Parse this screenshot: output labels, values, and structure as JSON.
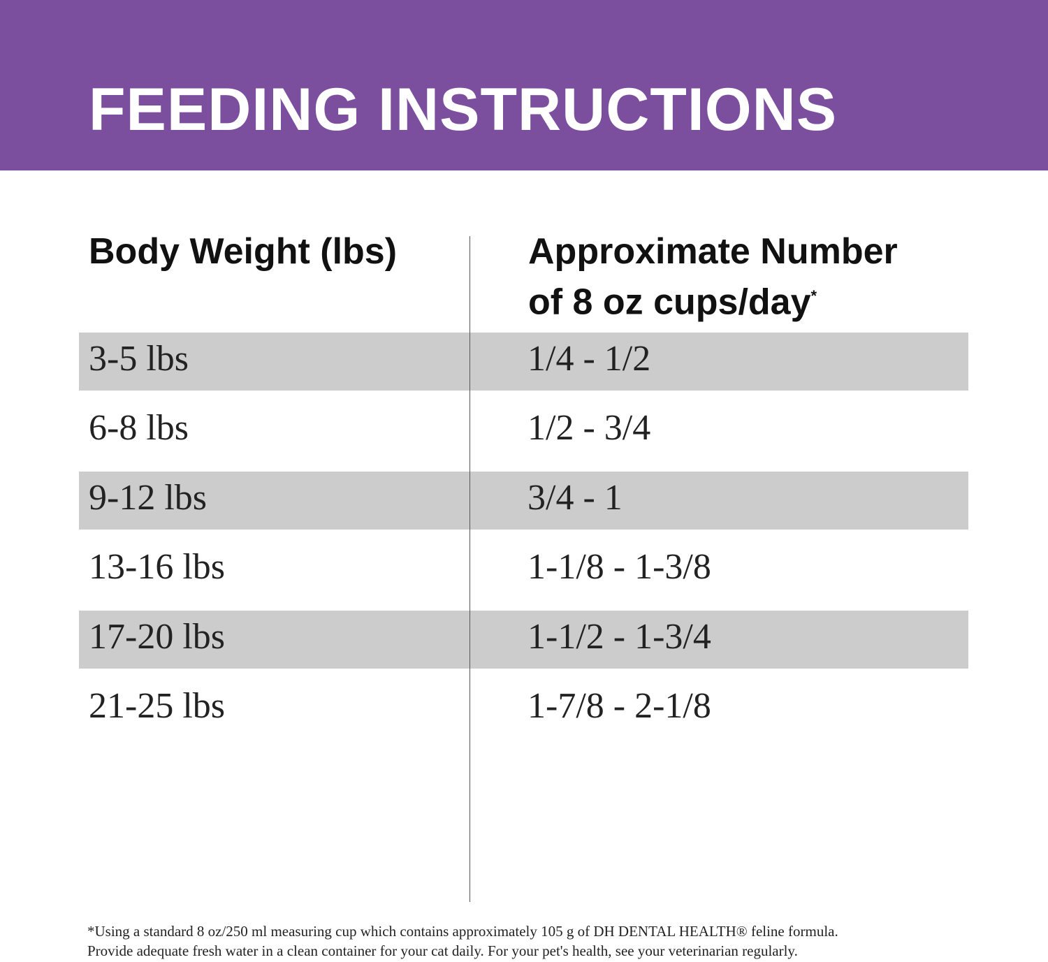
{
  "header": {
    "title": "FEEDING INSTRUCTIONS"
  },
  "table": {
    "headers": [
      [
        "Body Weight (lbs)"
      ],
      [
        "Approximate Number",
        "of 8 oz cups/day"
      ]
    ],
    "header_note_mark": "*",
    "rows": [
      [
        "3-5 lbs",
        "1/4 - 1/2"
      ],
      [
        "6-8 lbs",
        "1/2 - 3/4"
      ],
      [
        "9-12 lbs",
        "3/4 - 1"
      ],
      [
        "13-16 lbs",
        "1-1/8 - 1-3/8"
      ],
      [
        "17-20 lbs",
        "1-1/2 - 1-3/4"
      ],
      [
        "21-25 lbs",
        "1-7/8 - 2-1/8"
      ]
    ]
  },
  "footnote": [
    "*Using a standard 8 oz/250 ml measuring cup which contains approximately 105 g of DH DENTAL HEALTH® feline formula.",
    "Provide adequate fresh water in a clean container for your cat daily. For your pet's health, see your veterinarian regularly."
  ]
}
